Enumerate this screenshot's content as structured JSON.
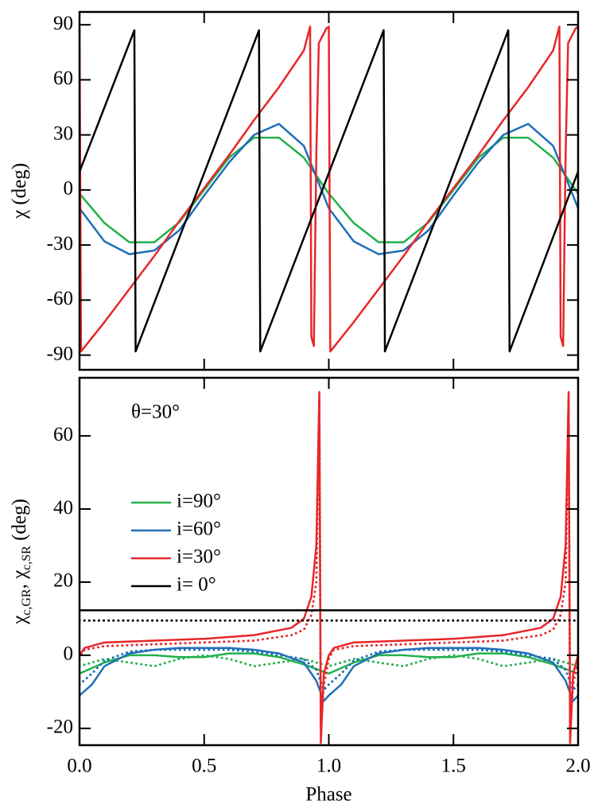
{
  "chart_data": [
    {
      "type": "line",
      "ylabel": [
        {
          "text": "χ (deg)"
        }
      ],
      "xlim": [
        0,
        2
      ],
      "xticks": [
        0,
        0.5,
        1,
        1.5,
        2
      ],
      "xtick_labels": false,
      "ylim": [
        -98,
        97
      ],
      "yticks": [
        -90,
        -60,
        -30,
        0,
        30,
        60,
        90
      ],
      "series": [
        {
          "color": "#22b14c",
          "x": [
            0,
            0.1,
            0.2,
            0.3,
            0.4,
            0.5,
            0.6,
            0.7,
            0.8,
            0.9,
            1,
            1.1,
            1.2,
            1.3,
            1.4,
            1.5,
            1.6,
            1.7,
            1.8,
            1.9,
            2
          ],
          "values": [
            -2,
            -18,
            -28.5,
            -28.5,
            -17.6,
            0,
            17.6,
            28.5,
            28.5,
            17.6,
            -2,
            -18,
            -28.5,
            -28.5,
            -17.6,
            0,
            17.6,
            28.5,
            28.5,
            17.6,
            -2
          ]
        },
        {
          "color": "#1f6fb8",
          "x": [
            0,
            0.1,
            0.2,
            0.3,
            0.4,
            0.5,
            0.6,
            0.7,
            0.8,
            0.9,
            1,
            1.1,
            1.2,
            1.3,
            1.4,
            1.5,
            1.6,
            1.7,
            1.8,
            1.9,
            2
          ],
          "values": [
            -10,
            -28,
            -35,
            -33,
            -22,
            -3,
            15,
            30,
            36,
            24,
            -10,
            -28,
            -35,
            -33,
            -22,
            -3,
            15,
            30,
            36,
            24,
            -10
          ]
        },
        {
          "color": "#e8262a",
          "x": [
            0,
            0.006,
            0.1,
            0.2,
            0.3,
            0.4,
            0.5,
            0.6,
            0.7,
            0.8,
            0.9,
            0.925,
            0.93,
            0.94,
            0.95,
            0.96,
            0.99,
            1,
            1.006,
            1.1,
            1.2,
            1.3,
            1.4,
            1.5,
            1.6,
            1.7,
            1.8,
            1.9,
            1.925,
            1.93,
            1.94,
            1.95,
            1.96,
            1.99,
            2
          ],
          "values": [
            88,
            -88,
            -72,
            -54,
            -36,
            -17,
            1,
            19,
            38,
            56,
            76,
            89,
            -80,
            -85,
            20,
            80,
            88,
            89,
            -88,
            -72,
            -54,
            -36,
            -17,
            1,
            19,
            38,
            56,
            76,
            89,
            -80,
            -85,
            20,
            80,
            88,
            89
          ]
        },
        {
          "color": "#000000",
          "x": [
            0,
            0.22,
            0.225,
            0.72,
            0.725,
            1.22,
            1.225,
            1.72,
            1.725,
            2
          ],
          "values": [
            10,
            87,
            -88,
            87,
            -88,
            87,
            -88,
            87,
            -88,
            10
          ]
        }
      ]
    },
    {
      "type": "line",
      "annotation": "θ=30°",
      "xlabel": "Phase",
      "ylabel": [
        {
          "text": "χ"
        },
        {
          "text": "c,GR",
          "sub": true
        },
        {
          "text": ", χ"
        },
        {
          "text": "c,SR",
          "sub": true
        },
        {
          "text": " (deg)"
        }
      ],
      "xlim": [
        0,
        2
      ],
      "xticks": [
        {
          "value": 0,
          "label": "0.0"
        },
        0.5,
        {
          "value": 1,
          "label": "1.0"
        },
        1.5,
        {
          "value": 2,
          "label": "2.0"
        }
      ],
      "ylim": [
        -24.6,
        75.9
      ],
      "yticks": [
        -20,
        0,
        20,
        40,
        60
      ],
      "legend": "center-left",
      "series": [
        {
          "name": "i=90°",
          "color": "#22b14c",
          "x": [
            0,
            0.1,
            0.2,
            0.3,
            0.4,
            0.5,
            0.6,
            0.7,
            0.8,
            0.9,
            1,
            1.1,
            1.2,
            1.3,
            1.4,
            1.5,
            1.6,
            1.7,
            1.8,
            1.9,
            2
          ],
          "values": [
            -5,
            -2,
            0,
            0,
            -0.5,
            -0.5,
            0.5,
            0.5,
            -0.5,
            -2.5,
            -5,
            -2,
            0,
            0,
            -0.5,
            -0.5,
            0.5,
            0.5,
            -0.5,
            -2.5,
            -5
          ],
          "values_sr": [
            -3,
            -1,
            -2,
            -3,
            -1,
            0,
            -1,
            -3,
            -2,
            -1,
            -3,
            -1,
            -2,
            -3,
            -1,
            0,
            -1,
            -3,
            -2,
            -1,
            -3
          ]
        },
        {
          "name": "i=60°",
          "color": "#1f6fb8",
          "x": [
            0,
            0.05,
            0.1,
            0.2,
            0.3,
            0.4,
            0.5,
            0.6,
            0.7,
            0.8,
            0.9,
            0.95,
            0.98,
            1,
            1.05,
            1.1,
            1.2,
            1.3,
            1.4,
            1.5,
            1.6,
            1.7,
            1.8,
            1.9,
            1.95,
            1.98,
            2
          ],
          "values": [
            -11,
            -8,
            -3,
            0.5,
            1.5,
            2,
            2,
            2,
            1.5,
            0.5,
            -2,
            -7,
            -12.5,
            -11,
            -8,
            -3,
            0.5,
            1.5,
            2,
            2,
            2,
            1.5,
            0.5,
            -2,
            -7,
            -12.5,
            -11
          ],
          "values_sr": [
            -8,
            -5,
            -1.5,
            1,
            1.5,
            1.5,
            1.5,
            1.5,
            1,
            0,
            -1,
            -4,
            -9.5,
            -8,
            -5,
            -1.5,
            1,
            1.5,
            1.5,
            1.5,
            1.5,
            1,
            0,
            -1,
            -4,
            -9.5,
            -8
          ]
        },
        {
          "name": "i=30°",
          "color": "#e8262a",
          "x": [
            0,
            0.02,
            0.1,
            0.3,
            0.5,
            0.7,
            0.85,
            0.9,
            0.93,
            0.95,
            0.962,
            0.968,
            0.98,
            1,
            1.02,
            1.1,
            1.3,
            1.5,
            1.7,
            1.85,
            1.9,
            1.93,
            1.95,
            1.962,
            1.968,
            1.98,
            2
          ],
          "values": [
            0,
            2,
            3.5,
            4,
            4.5,
            5.5,
            7.5,
            10,
            16,
            30,
            72,
            -24,
            -5,
            0,
            2,
            3.5,
            4,
            4.5,
            5.5,
            7.5,
            10,
            16,
            30,
            72,
            -24,
            -5,
            0
          ],
          "values_sr": [
            -1,
            1.5,
            2.5,
            3,
            3.5,
            4,
            5.5,
            7,
            11,
            20,
            70,
            -20,
            -8,
            -1,
            1.5,
            2.5,
            3,
            3.5,
            4,
            5.5,
            7,
            11,
            20,
            70,
            -20,
            -8,
            -1
          ]
        },
        {
          "name": "i= 0°",
          "color": "#000000",
          "x": [
            0,
            2
          ],
          "values": [
            12.3,
            12.3
          ],
          "values_sr": [
            9.5,
            9.5
          ]
        }
      ]
    }
  ]
}
